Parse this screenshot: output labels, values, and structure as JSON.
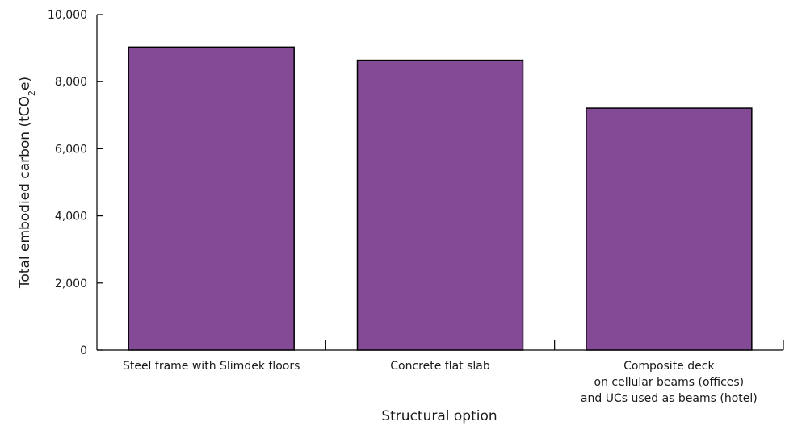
{
  "chart_data": {
    "type": "bar",
    "categories": [
      [
        "Steel frame with Slimdek floors"
      ],
      [
        "Concrete flat slab"
      ],
      [
        "Composite deck",
        "on cellular beams (offices)",
        "and UCs used as beams (hotel)"
      ]
    ],
    "values": [
      9030,
      8640,
      7210
    ],
    "xlabel": "Structural option",
    "ylabel": {
      "prefix": "Total embodied carbon (tCO",
      "subscript": "2",
      "suffix": "e)"
    },
    "ylim": [
      0,
      10000
    ],
    "yticks": [
      0,
      2000,
      4000,
      6000,
      8000,
      10000
    ],
    "ytick_labels": [
      "0",
      "2,000",
      "4,000",
      "6,000",
      "8,000",
      "10,000"
    ],
    "grid": false,
    "bar_color": "#834a96",
    "bar_edge_color": "#000000"
  }
}
